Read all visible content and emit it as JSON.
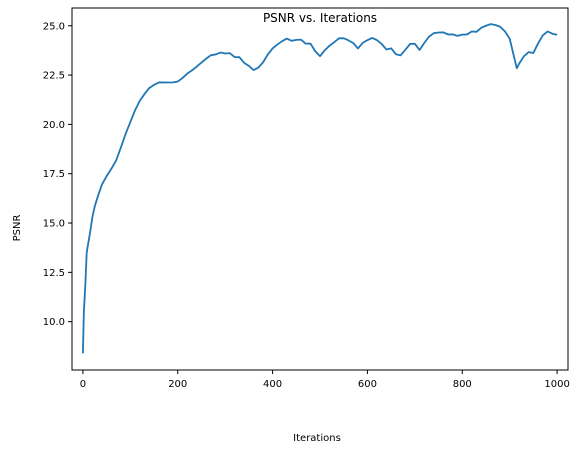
{
  "chart_data": {
    "type": "line",
    "title": "PSNR vs. Iterations",
    "xlabel": "Iterations",
    "ylabel": "PSNR",
    "xlim": [
      -23,
      1023
    ],
    "ylim": [
      7.55,
      25.9
    ],
    "xticks": [
      0,
      200,
      400,
      600,
      800,
      1000
    ],
    "xtick_labels": [
      "0",
      "200",
      "400",
      "600",
      "800",
      "1000"
    ],
    "yticks": [
      10.0,
      12.5,
      15.0,
      17.5,
      20.0,
      22.5,
      25.0
    ],
    "ytick_labels": [
      "10.0",
      "12.5",
      "15.0",
      "17.5",
      "20.0",
      "22.5",
      "25.0"
    ],
    "grid": false,
    "legend": "none",
    "series": [
      {
        "color": "#1f77b4",
        "x": [
          0,
          2,
          5,
          8,
          10,
          15,
          20,
          25,
          30,
          40,
          50,
          60,
          70,
          80,
          90,
          100,
          110,
          120,
          130,
          140,
          150,
          160,
          170,
          180,
          190,
          200,
          210,
          220,
          230,
          240,
          250,
          260,
          270,
          280,
          290,
          300,
          310,
          320,
          330,
          340,
          350,
          360,
          370,
          380,
          390,
          400,
          410,
          420,
          430,
          440,
          450,
          460,
          470,
          480,
          490,
          500,
          510,
          520,
          530,
          540,
          550,
          560,
          570,
          580,
          590,
          600,
          610,
          620,
          630,
          640,
          650,
          660,
          670,
          680,
          690,
          700,
          710,
          720,
          730,
          740,
          750,
          760,
          770,
          780,
          790,
          800,
          810,
          820,
          830,
          840,
          850,
          860,
          870,
          880,
          890,
          900,
          905,
          910,
          915,
          920,
          930,
          940,
          950,
          960,
          970,
          980,
          990,
          1000
        ],
        "y": [
          8.4,
          10.5,
          11.8,
          13.5,
          13.8,
          14.5,
          15.3,
          15.8,
          16.3,
          17.1,
          17.6,
          18.0,
          18.4,
          19.0,
          19.6,
          20.1,
          20.6,
          21.0,
          21.3,
          21.6,
          21.8,
          22.0,
          22.1,
          22.2,
          22.3,
          22.4,
          22.6,
          22.8,
          22.9,
          23.0,
          23.1,
          23.2,
          23.3,
          23.3,
          23.4,
          23.4,
          23.5,
          23.4,
          23.5,
          23.3,
          23.2,
          23.0,
          23.1,
          23.3,
          23.6,
          23.8,
          23.9,
          24.0,
          24.1,
          24.0,
          24.1,
          24.2,
          24.1,
          24.2,
          23.9,
          23.7,
          24.0,
          24.2,
          24.3,
          24.4,
          24.3,
          24.1,
          23.9,
          23.6,
          23.9,
          24.1,
          24.3,
          24.3,
          24.2,
          24.0,
          24.1,
          23.8,
          23.7,
          23.9,
          24.1,
          24.0,
          23.6,
          23.9,
          24.2,
          24.4,
          24.5,
          24.6,
          24.6,
          24.7,
          24.7,
          24.8,
          24.8,
          24.9,
          24.8,
          24.9,
          24.9,
          24.9,
          24.8,
          24.7,
          24.5,
          24.2,
          23.8,
          23.4,
          23.0,
          23.3,
          23.7,
          23.9,
          23.8,
          24.2,
          24.5,
          24.6,
          24.4,
          24.3
        ]
      }
    ]
  }
}
